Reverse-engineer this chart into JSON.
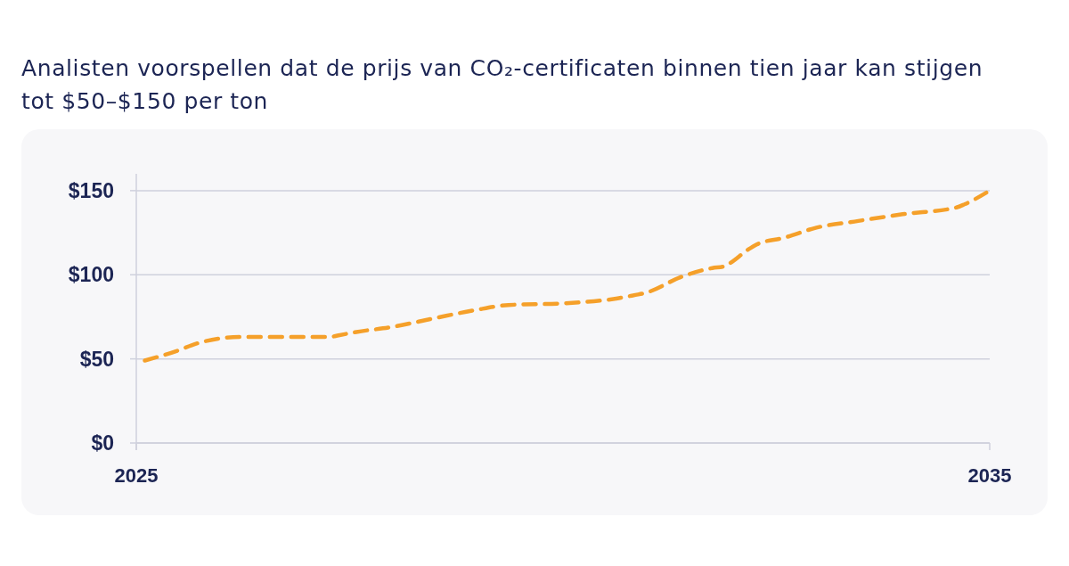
{
  "chart_data": {
    "type": "line",
    "title": "Analisten voorspellen dat de prijs van CO₂-certificaten binnen tien jaar kan stijgen tot $50–$150 per ton",
    "x": [
      2025.1,
      2025.49,
      2025.7,
      2026.22,
      2026.43,
      2027.26,
      2027.37,
      2027.58,
      2028.0,
      2028.48,
      2028.97,
      2029.36,
      2030.01,
      2030.64,
      2030.85,
      2030.95,
      2031.4,
      2031.75,
      2031.89,
      2031.96,
      2032.17,
      2032.27,
      2032.59,
      2032.97,
      2033.46,
      2033.98,
      2034.61,
      2034.71,
      2035
    ],
    "series": [
      {
        "color": "#f5a02a",
        "values": [
          49,
          55,
          59,
          63,
          63,
          63,
          64,
          66,
          69,
          74,
          79,
          82,
          83,
          86,
          88,
          89,
          99,
          104,
          105,
          107,
          115,
          118,
          122,
          128,
          132,
          136,
          140,
          142,
          150
        ]
      }
    ],
    "xlim": [
      2025,
      2035
    ],
    "xticks": [
      2025,
      2035
    ],
    "ylim": [
      0,
      160
    ],
    "yticks": [
      {
        "value": 0,
        "label": "$0"
      },
      {
        "value": 50,
        "label": "$50"
      },
      {
        "value": 100,
        "label": "$100"
      },
      {
        "value": 150,
        "label": "$150"
      }
    ],
    "grid": "y",
    "line_style": "dashed"
  }
}
